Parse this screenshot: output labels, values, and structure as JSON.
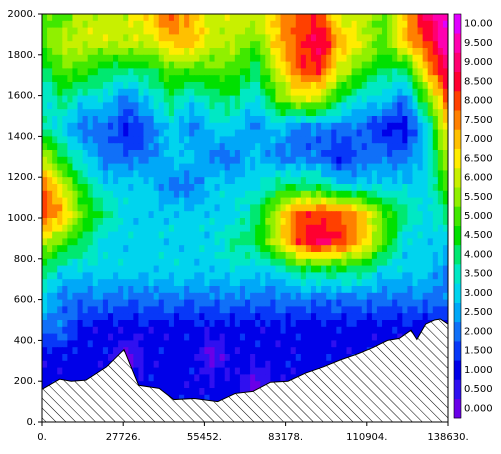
{
  "chart_data": {
    "type": "heatmap",
    "subtype": "filled-contour",
    "x": [
      0,
      27726,
      55452,
      83178,
      110904,
      138630
    ],
    "x_tick_labels": [
      "0.",
      "27726.",
      "55452.",
      "83178.",
      "110904.",
      "138630."
    ],
    "ylim": [
      0,
      2000
    ],
    "y_ticks": [
      0,
      200,
      400,
      600,
      800,
      1000,
      1200,
      1400,
      1600,
      1800,
      2000
    ],
    "y_tick_labels": [
      "0.",
      "200.",
      "400.",
      "600.",
      "800.",
      "1000.",
      "1200.",
      "1400.",
      "1600.",
      "1800.",
      "2000."
    ],
    "colorbar": {
      "min": -0.25,
      "max": 10.25,
      "step": 0.5,
      "labels": [
        "0.000",
        "0.500",
        "1.000",
        "1.500",
        "2.000",
        "2.500",
        "3.000",
        "3.500",
        "4.000",
        "4.500",
        "5.000",
        "5.500",
        "6.000",
        "6.500",
        "7.000",
        "7.500",
        "8.000",
        "8.500",
        "9.000",
        "9.500",
        "10.00"
      ],
      "colors": [
        "#6a00e8",
        "#3010f0",
        "#0000e8",
        "#0838f8",
        "#1070f8",
        "#00a8f8",
        "#00d4ee",
        "#00e8c4",
        "#00e870",
        "#00e000",
        "#40e800",
        "#90f000",
        "#c8f000",
        "#ffec00",
        "#ffc000",
        "#ff8000",
        "#ff4000",
        "#ff0030",
        "#ff0070",
        "#ff00b0",
        "#e000ff"
      ]
    },
    "terrain": {
      "x": [
        0,
        6000,
        10000,
        15000,
        22000,
        28000,
        33000,
        40000,
        45000,
        52000,
        60000,
        66000,
        72000,
        78000,
        84000,
        90000,
        96000,
        102000,
        108000,
        113000,
        118000,
        122000,
        126000,
        128000,
        131000,
        134000,
        136000,
        138630
      ],
      "y": [
        160,
        210,
        200,
        205,
        270,
        355,
        180,
        165,
        110,
        115,
        100,
        140,
        150,
        195,
        200,
        240,
        270,
        305,
        335,
        365,
        400,
        410,
        450,
        405,
        480,
        500,
        505,
        480
      ]
    },
    "value_grid": {
      "rows": [
        [
          5,
          5,
          6,
          6,
          6,
          7,
          8,
          7,
          6,
          6,
          6,
          7,
          8,
          8,
          6,
          6,
          5,
          7,
          9,
          10
        ],
        [
          5,
          6,
          6,
          6,
          6,
          6,
          7,
          7,
          6,
          6,
          5,
          7,
          8,
          9,
          7,
          6,
          5,
          7,
          8,
          10
        ],
        [
          4,
          5,
          5,
          4,
          4,
          4,
          5,
          5,
          5,
          5,
          4,
          6,
          8,
          8,
          6,
          5,
          4,
          4,
          7,
          9
        ],
        [
          3,
          4,
          3,
          3,
          2,
          3,
          4,
          3,
          4,
          4,
          3,
          5,
          6,
          6,
          4,
          3,
          3,
          2,
          5,
          8
        ],
        [
          4,
          3,
          2,
          2,
          1,
          2,
          3,
          2,
          3,
          3,
          2,
          3,
          2,
          2,
          2,
          2,
          1,
          1,
          3,
          7
        ],
        [
          6,
          4,
          3,
          2,
          2,
          2,
          3,
          3,
          2,
          2,
          3,
          2,
          2,
          2,
          1,
          2,
          2,
          2,
          3,
          6
        ],
        [
          8,
          6,
          4,
          3,
          3,
          3,
          2,
          2,
          3,
          3,
          3,
          4,
          4,
          4,
          3,
          3,
          3,
          3,
          3,
          5
        ],
        [
          8,
          7,
          5,
          4,
          3,
          3,
          3,
          3,
          3,
          3,
          4,
          6,
          8,
          8,
          8,
          7,
          5,
          4,
          3,
          4
        ],
        [
          6,
          5,
          4,
          3,
          3,
          3,
          3,
          3,
          3,
          4,
          4,
          6,
          8,
          9,
          8,
          7,
          5,
          3,
          3,
          3
        ],
        [
          4,
          3,
          3,
          3,
          3,
          3,
          3,
          3,
          3,
          3,
          3,
          3,
          4,
          4,
          4,
          4,
          3,
          3,
          3,
          2
        ],
        [
          3,
          2,
          2,
          2,
          2,
          2,
          2,
          2,
          2,
          2,
          2,
          2,
          2,
          2,
          2,
          2,
          2,
          2,
          2,
          2
        ],
        [
          2,
          2,
          1,
          1,
          1,
          1,
          1,
          1,
          1,
          1,
          1,
          1,
          1,
          1,
          1,
          1,
          1,
          1,
          1,
          1
        ],
        [
          1,
          1,
          1,
          1,
          0,
          1,
          1,
          1,
          0,
          1,
          1,
          1,
          1,
          1,
          1,
          1,
          1,
          1,
          1,
          1
        ],
        [
          1,
          1,
          1,
          1,
          1,
          1,
          1,
          1,
          1,
          1,
          0,
          1,
          1,
          1,
          1,
          1,
          1,
          1,
          1,
          1
        ]
      ],
      "y_from": 2000,
      "y_to": 180
    }
  }
}
